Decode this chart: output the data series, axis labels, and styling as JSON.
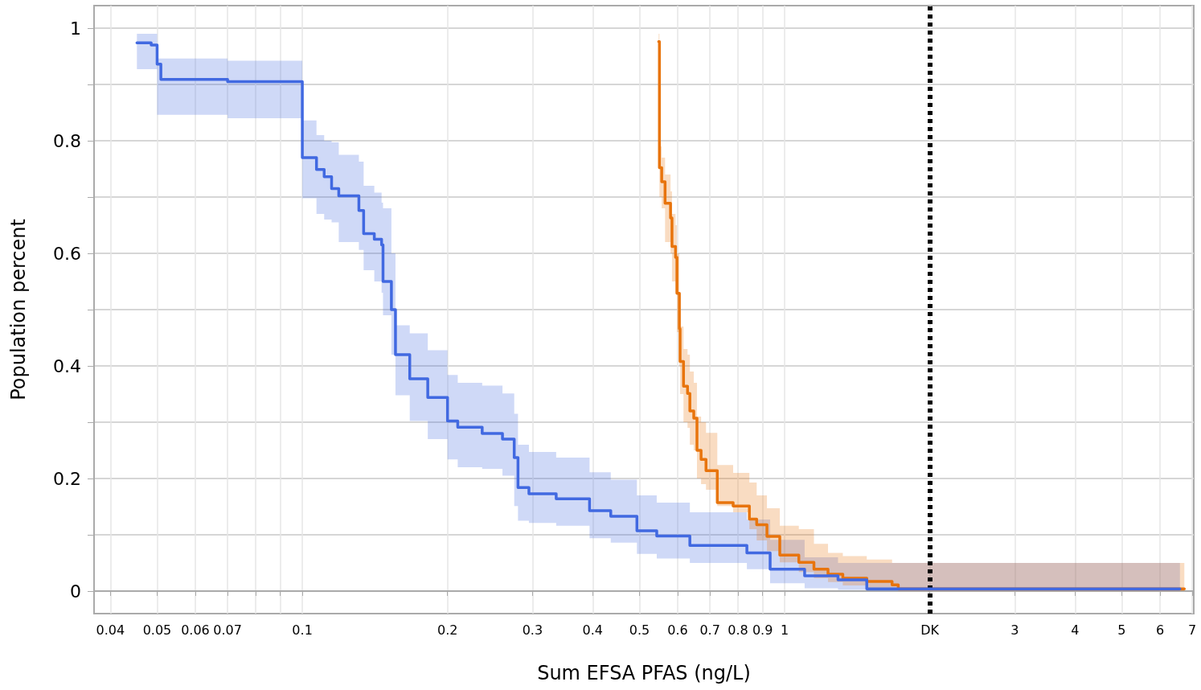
{
  "chart_data": {
    "type": "step",
    "xlabel": "Sum EFSA PFAS (ng/L)",
    "ylabel": "Population percent",
    "log": "x",
    "grid": true,
    "line_style": "solid",
    "xlim": [
      0.037,
      7.05
    ],
    "ylim": [
      -0.04,
      1.04
    ],
    "xticks": [
      0.04,
      0.05,
      0.06,
      0.07,
      {
        "value": 0.08,
        "label": null
      },
      {
        "value": 0.09,
        "label": null
      },
      0.1,
      0.2,
      0.3,
      0.4,
      0.5,
      0.6,
      0.7,
      0.8,
      0.9,
      1,
      {
        "value": 2,
        "label": "DK"
      },
      3,
      4,
      5,
      6,
      7
    ],
    "yticks": [
      0,
      {
        "value": 0.1,
        "label": null
      },
      0.2,
      {
        "value": 0.3,
        "label": null
      },
      0.4,
      {
        "value": 0.5,
        "label": null
      },
      0.6,
      {
        "value": 0.7,
        "label": null
      },
      0.8,
      {
        "value": 0.9,
        "label": null
      },
      1
    ],
    "ref_lines": [
      {
        "axis": "x",
        "value": 2,
        "color": "#000000",
        "line_style": "dotted"
      }
    ],
    "series": [
      {
        "color": "#4169e1",
        "x": [
          0.0454,
          0.0486,
          0.05,
          0.0509,
          0.07,
          0.1,
          0.107,
          0.111,
          0.115,
          0.119,
          0.131,
          0.134,
          0.141,
          0.146,
          0.147,
          0.153,
          0.156,
          0.167,
          0.182,
          0.2,
          0.21,
          0.236,
          0.26,
          0.275,
          0.28,
          0.295,
          0.336,
          0.394,
          0.436,
          0.494,
          0.543,
          0.636,
          0.835,
          0.933,
          1.1,
          1.29,
          1.48,
          6.6
        ],
        "values": [
          0.974,
          0.97,
          0.936,
          0.909,
          0.905,
          0.77,
          0.749,
          0.736,
          0.715,
          0.702,
          0.676,
          0.635,
          0.625,
          0.615,
          0.55,
          0.5,
          0.42,
          0.377,
          0.344,
          0.302,
          0.291,
          0.28,
          0.27,
          0.237,
          0.184,
          0.173,
          0.164,
          0.143,
          0.133,
          0.107,
          0.098,
          0.081,
          0.068,
          0.039,
          0.027,
          0.02,
          0.004,
          0.004
        ],
        "upper": [
          0.99,
          0.99,
          0.946,
          0.946,
          0.942,
          0.836,
          0.81,
          0.8,
          0.797,
          0.775,
          0.763,
          0.72,
          0.708,
          0.69,
          0.68,
          0.6,
          0.472,
          0.458,
          0.428,
          0.384,
          0.37,
          0.365,
          0.351,
          0.315,
          0.26,
          0.247,
          0.237,
          0.211,
          0.198,
          0.17,
          0.157,
          0.14,
          0.127,
          0.091,
          0.06,
          0.05,
          0.05,
          0.05
        ],
        "lower": [
          0.927,
          0.927,
          0.846,
          0.846,
          0.84,
          0.698,
          0.67,
          0.66,
          0.655,
          0.62,
          0.606,
          0.57,
          0.55,
          0.53,
          0.49,
          0.42,
          0.348,
          0.302,
          0.27,
          0.234,
          0.22,
          0.217,
          0.205,
          0.151,
          0.125,
          0.121,
          0.116,
          0.094,
          0.086,
          0.066,
          0.058,
          0.05,
          0.039,
          0.014,
          0.005,
          0.002,
          0,
          0
        ]
      },
      {
        "color": "#e8740c",
        "x": [
          0.548,
          0.55,
          0.556,
          0.565,
          0.58,
          0.584,
          0.594,
          0.598,
          0.605,
          0.607,
          0.617,
          0.629,
          0.636,
          0.648,
          0.658,
          0.671,
          0.687,
          0.725,
          0.782,
          0.845,
          0.875,
          0.919,
          0.977,
          1.07,
          1.15,
          1.23,
          1.32,
          1.48,
          1.67,
          1.72,
          6.74
        ],
        "values": [
          0.976,
          0.752,
          0.727,
          0.689,
          0.663,
          0.612,
          0.593,
          0.529,
          0.466,
          0.408,
          0.364,
          0.351,
          0.32,
          0.307,
          0.25,
          0.234,
          0.214,
          0.157,
          0.151,
          0.128,
          0.118,
          0.097,
          0.064,
          0.051,
          0.039,
          0.03,
          0.023,
          0.017,
          0.011,
          0.004,
          0.004
        ],
        "upper": [
          0.99,
          0.79,
          0.77,
          0.74,
          0.71,
          0.67,
          0.65,
          0.6,
          0.53,
          0.47,
          0.43,
          0.42,
          0.39,
          0.37,
          0.31,
          0.3,
          0.281,
          0.224,
          0.21,
          0.193,
          0.17,
          0.147,
          0.116,
          0.11,
          0.084,
          0.068,
          0.062,
          0.056,
          0.05,
          0.05,
          0.05
        ],
        "lower": [
          0.94,
          0.7,
          0.68,
          0.62,
          0.6,
          0.55,
          0.53,
          0.46,
          0.4,
          0.35,
          0.3,
          0.29,
          0.26,
          0.25,
          0.2,
          0.19,
          0.18,
          0.151,
          0.14,
          0.11,
          0.09,
          0.071,
          0.051,
          0.034,
          0.023,
          0.016,
          0.01,
          0.005,
          0.002,
          0,
          0
        ]
      }
    ]
  }
}
